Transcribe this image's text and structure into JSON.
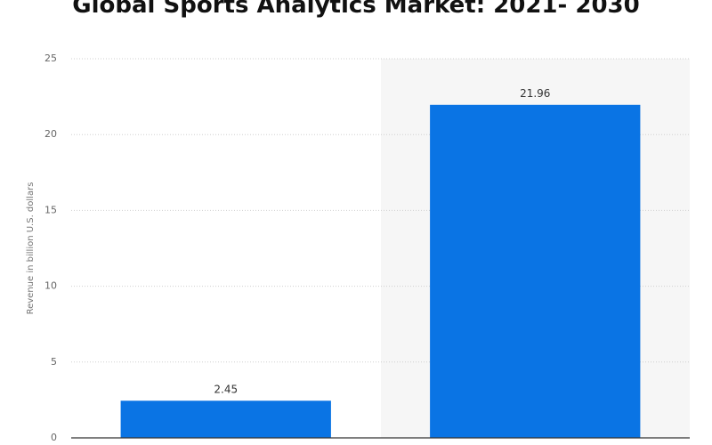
{
  "chart_data": {
    "type": "bar",
    "title": "Global Sports Analytics Market: 2021- 2030",
    "y_label": "Revenue in billion U.S. dollars",
    "categories": [
      null,
      null
    ],
    "values": [
      2.45,
      21.96
    ],
    "color": "#0a74e4",
    "ylim": [
      0,
      25
    ],
    "yticks": [
      0,
      5,
      10,
      15,
      20,
      25
    ],
    "grid": true
  }
}
